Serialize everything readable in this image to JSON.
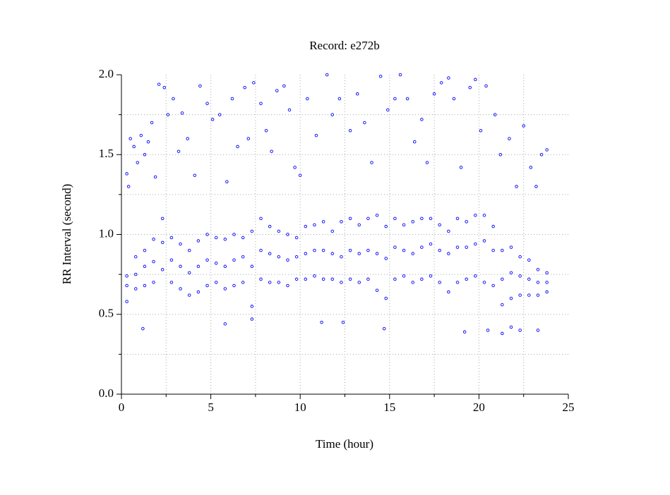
{
  "chart_data": {
    "type": "scatter",
    "title": "Record:  e272b",
    "xlabel": "Time (hour)",
    "ylabel": "RR Interval (second)",
    "xlim": [
      0,
      25
    ],
    "ylim": [
      0,
      2
    ],
    "xticks": [
      0,
      5,
      10,
      15,
      20,
      25
    ],
    "xminorticks": [
      2.5,
      7.5,
      12.5,
      17.5,
      22.5
    ],
    "yticks": [
      {
        "value": 0,
        "label": "0.0"
      },
      0.5,
      {
        "value": 1,
        "label": "1.0"
      },
      1.5,
      {
        "value": 2,
        "label": "2.0"
      }
    ],
    "yminorticks": [
      0.25,
      0.75,
      1.25,
      1.75
    ],
    "grid": true,
    "x": [
      0.3,
      0.3,
      0.3,
      0.8,
      0.8,
      0.8,
      1.3,
      1.3,
      1.3,
      1.8,
      1.8,
      1.8,
      2.3,
      2.3,
      2.3,
      2.8,
      2.8,
      2.8,
      3.3,
      3.3,
      3.3,
      3.8,
      3.8,
      3.8,
      4.3,
      4.3,
      4.3,
      4.8,
      4.8,
      4.8,
      5.3,
      5.3,
      5.3,
      5.8,
      5.8,
      5.8,
      6.3,
      6.3,
      6.3,
      6.8,
      6.8,
      6.8,
      7.3,
      7.3,
      7.3,
      7.8,
      7.8,
      7.8,
      8.3,
      8.3,
      8.3,
      8.8,
      8.8,
      8.8,
      9.3,
      9.3,
      9.3,
      9.8,
      9.8,
      9.8,
      10.3,
      10.3,
      10.3,
      10.8,
      10.8,
      10.8,
      11.3,
      11.3,
      11.3,
      11.8,
      11.8,
      11.8,
      12.3,
      12.3,
      12.3,
      12.8,
      12.8,
      12.8,
      13.3,
      13.3,
      13.3,
      13.8,
      13.8,
      13.8,
      14.3,
      14.3,
      14.3,
      14.8,
      14.8,
      14.8,
      15.3,
      15.3,
      15.3,
      15.8,
      15.8,
      15.8,
      16.3,
      16.3,
      16.3,
      16.8,
      16.8,
      16.8,
      17.3,
      17.3,
      17.3,
      17.8,
      17.8,
      17.8,
      18.3,
      18.3,
      18.3,
      18.8,
      18.8,
      18.8,
      19.3,
      19.3,
      19.3,
      19.8,
      19.8,
      19.8,
      20.3,
      20.3,
      20.3,
      20.8,
      20.8,
      20.8,
      21.3,
      21.3,
      21.3,
      21.8,
      21.8,
      21.8,
      22.3,
      22.3,
      22.3,
      22.8,
      22.8,
      22.8,
      23.3,
      23.3,
      23.3,
      23.8,
      23.8,
      23.8,
      0.3,
      0.4,
      0.5,
      0.7,
      0.9,
      1.1,
      1.2,
      1.3,
      1.5,
      1.7,
      1.9,
      2.1,
      2.4,
      2.6,
      2.9,
      3.2,
      3.4,
      3.7,
      4.1,
      4.4,
      4.8,
      5.1,
      5.5,
      5.8,
      5.9,
      6.2,
      6.5,
      6.9,
      7.1,
      7.3,
      7.4,
      7.8,
      8.1,
      8.4,
      8.7,
      9.1,
      9.4,
      9.7,
      10.0,
      10.4,
      10.9,
      11.2,
      11.5,
      11.8,
      12.2,
      12.4,
      12.8,
      13.2,
      13.6,
      14.0,
      14.5,
      14.7,
      14.9,
      15.3,
      15.6,
      16.0,
      16.4,
      16.8,
      17.1,
      17.5,
      17.9,
      18.3,
      18.6,
      19.0,
      19.2,
      19.5,
      19.8,
      20.1,
      20.4,
      20.5,
      20.9,
      21.2,
      21.3,
      21.7,
      21.8,
      22.1,
      22.3,
      22.5,
      22.9,
      23.2,
      23.3,
      23.5,
      23.8
    ],
    "series": [
      {
        "color": "#0000ff",
        "values": [
          0.58,
          0.68,
          0.74,
          0.66,
          0.75,
          0.86,
          0.68,
          0.8,
          0.9,
          0.7,
          0.83,
          0.97,
          0.78,
          0.95,
          1.1,
          0.7,
          0.84,
          0.98,
          0.66,
          0.8,
          0.94,
          0.62,
          0.76,
          0.9,
          0.64,
          0.8,
          0.96,
          0.68,
          0.84,
          1.0,
          0.7,
          0.82,
          0.98,
          0.66,
          0.8,
          0.97,
          0.68,
          0.84,
          1.0,
          0.7,
          0.86,
          0.98,
          0.55,
          0.8,
          1.02,
          0.72,
          0.9,
          1.1,
          0.7,
          0.88,
          1.05,
          0.7,
          0.86,
          1.02,
          0.68,
          0.84,
          1.0,
          0.72,
          0.86,
          0.98,
          0.72,
          0.88,
          1.05,
          0.74,
          0.9,
          1.06,
          0.72,
          0.9,
          1.08,
          0.72,
          0.88,
          1.02,
          0.7,
          0.86,
          1.08,
          0.72,
          0.9,
          1.1,
          0.7,
          0.88,
          1.06,
          0.72,
          0.9,
          1.1,
          0.65,
          0.88,
          1.12,
          0.6,
          0.85,
          1.05,
          0.72,
          0.92,
          1.1,
          0.74,
          0.9,
          1.06,
          0.7,
          0.88,
          1.08,
          0.72,
          0.92,
          1.1,
          0.74,
          0.94,
          1.1,
          0.7,
          0.9,
          1.06,
          0.64,
          0.88,
          1.02,
          0.7,
          0.92,
          1.1,
          0.72,
          0.92,
          1.08,
          0.74,
          0.94,
          1.12,
          0.7,
          0.96,
          1.12,
          0.68,
          0.9,
          1.05,
          0.56,
          0.72,
          0.9,
          0.6,
          0.76,
          0.92,
          0.62,
          0.74,
          0.86,
          0.62,
          0.72,
          0.84,
          0.62,
          0.7,
          0.78,
          0.64,
          0.7,
          0.76,
          1.38,
          1.3,
          1.6,
          1.55,
          1.45,
          1.62,
          0.41,
          1.5,
          1.58,
          1.7,
          1.36,
          1.94,
          1.92,
          1.75,
          1.85,
          1.52,
          1.76,
          1.6,
          1.37,
          1.93,
          1.82,
          1.72,
          1.75,
          0.44,
          1.33,
          1.85,
          1.55,
          1.92,
          1.6,
          0.47,
          1.95,
          1.82,
          1.65,
          1.52,
          1.9,
          1.93,
          1.78,
          1.42,
          1.37,
          1.85,
          1.62,
          0.45,
          2.0,
          1.75,
          1.85,
          0.45,
          1.65,
          1.88,
          1.7,
          1.45,
          1.99,
          0.41,
          1.78,
          1.85,
          2.0,
          1.85,
          1.58,
          1.72,
          1.45,
          1.88,
          1.95,
          1.98,
          1.85,
          1.42,
          0.39,
          1.92,
          1.97,
          1.65,
          1.93,
          0.4,
          1.75,
          1.5,
          0.38,
          1.6,
          0.42,
          1.3,
          0.4,
          1.68,
          1.42,
          1.3,
          0.4,
          1.5,
          1.53
        ]
      }
    ]
  }
}
